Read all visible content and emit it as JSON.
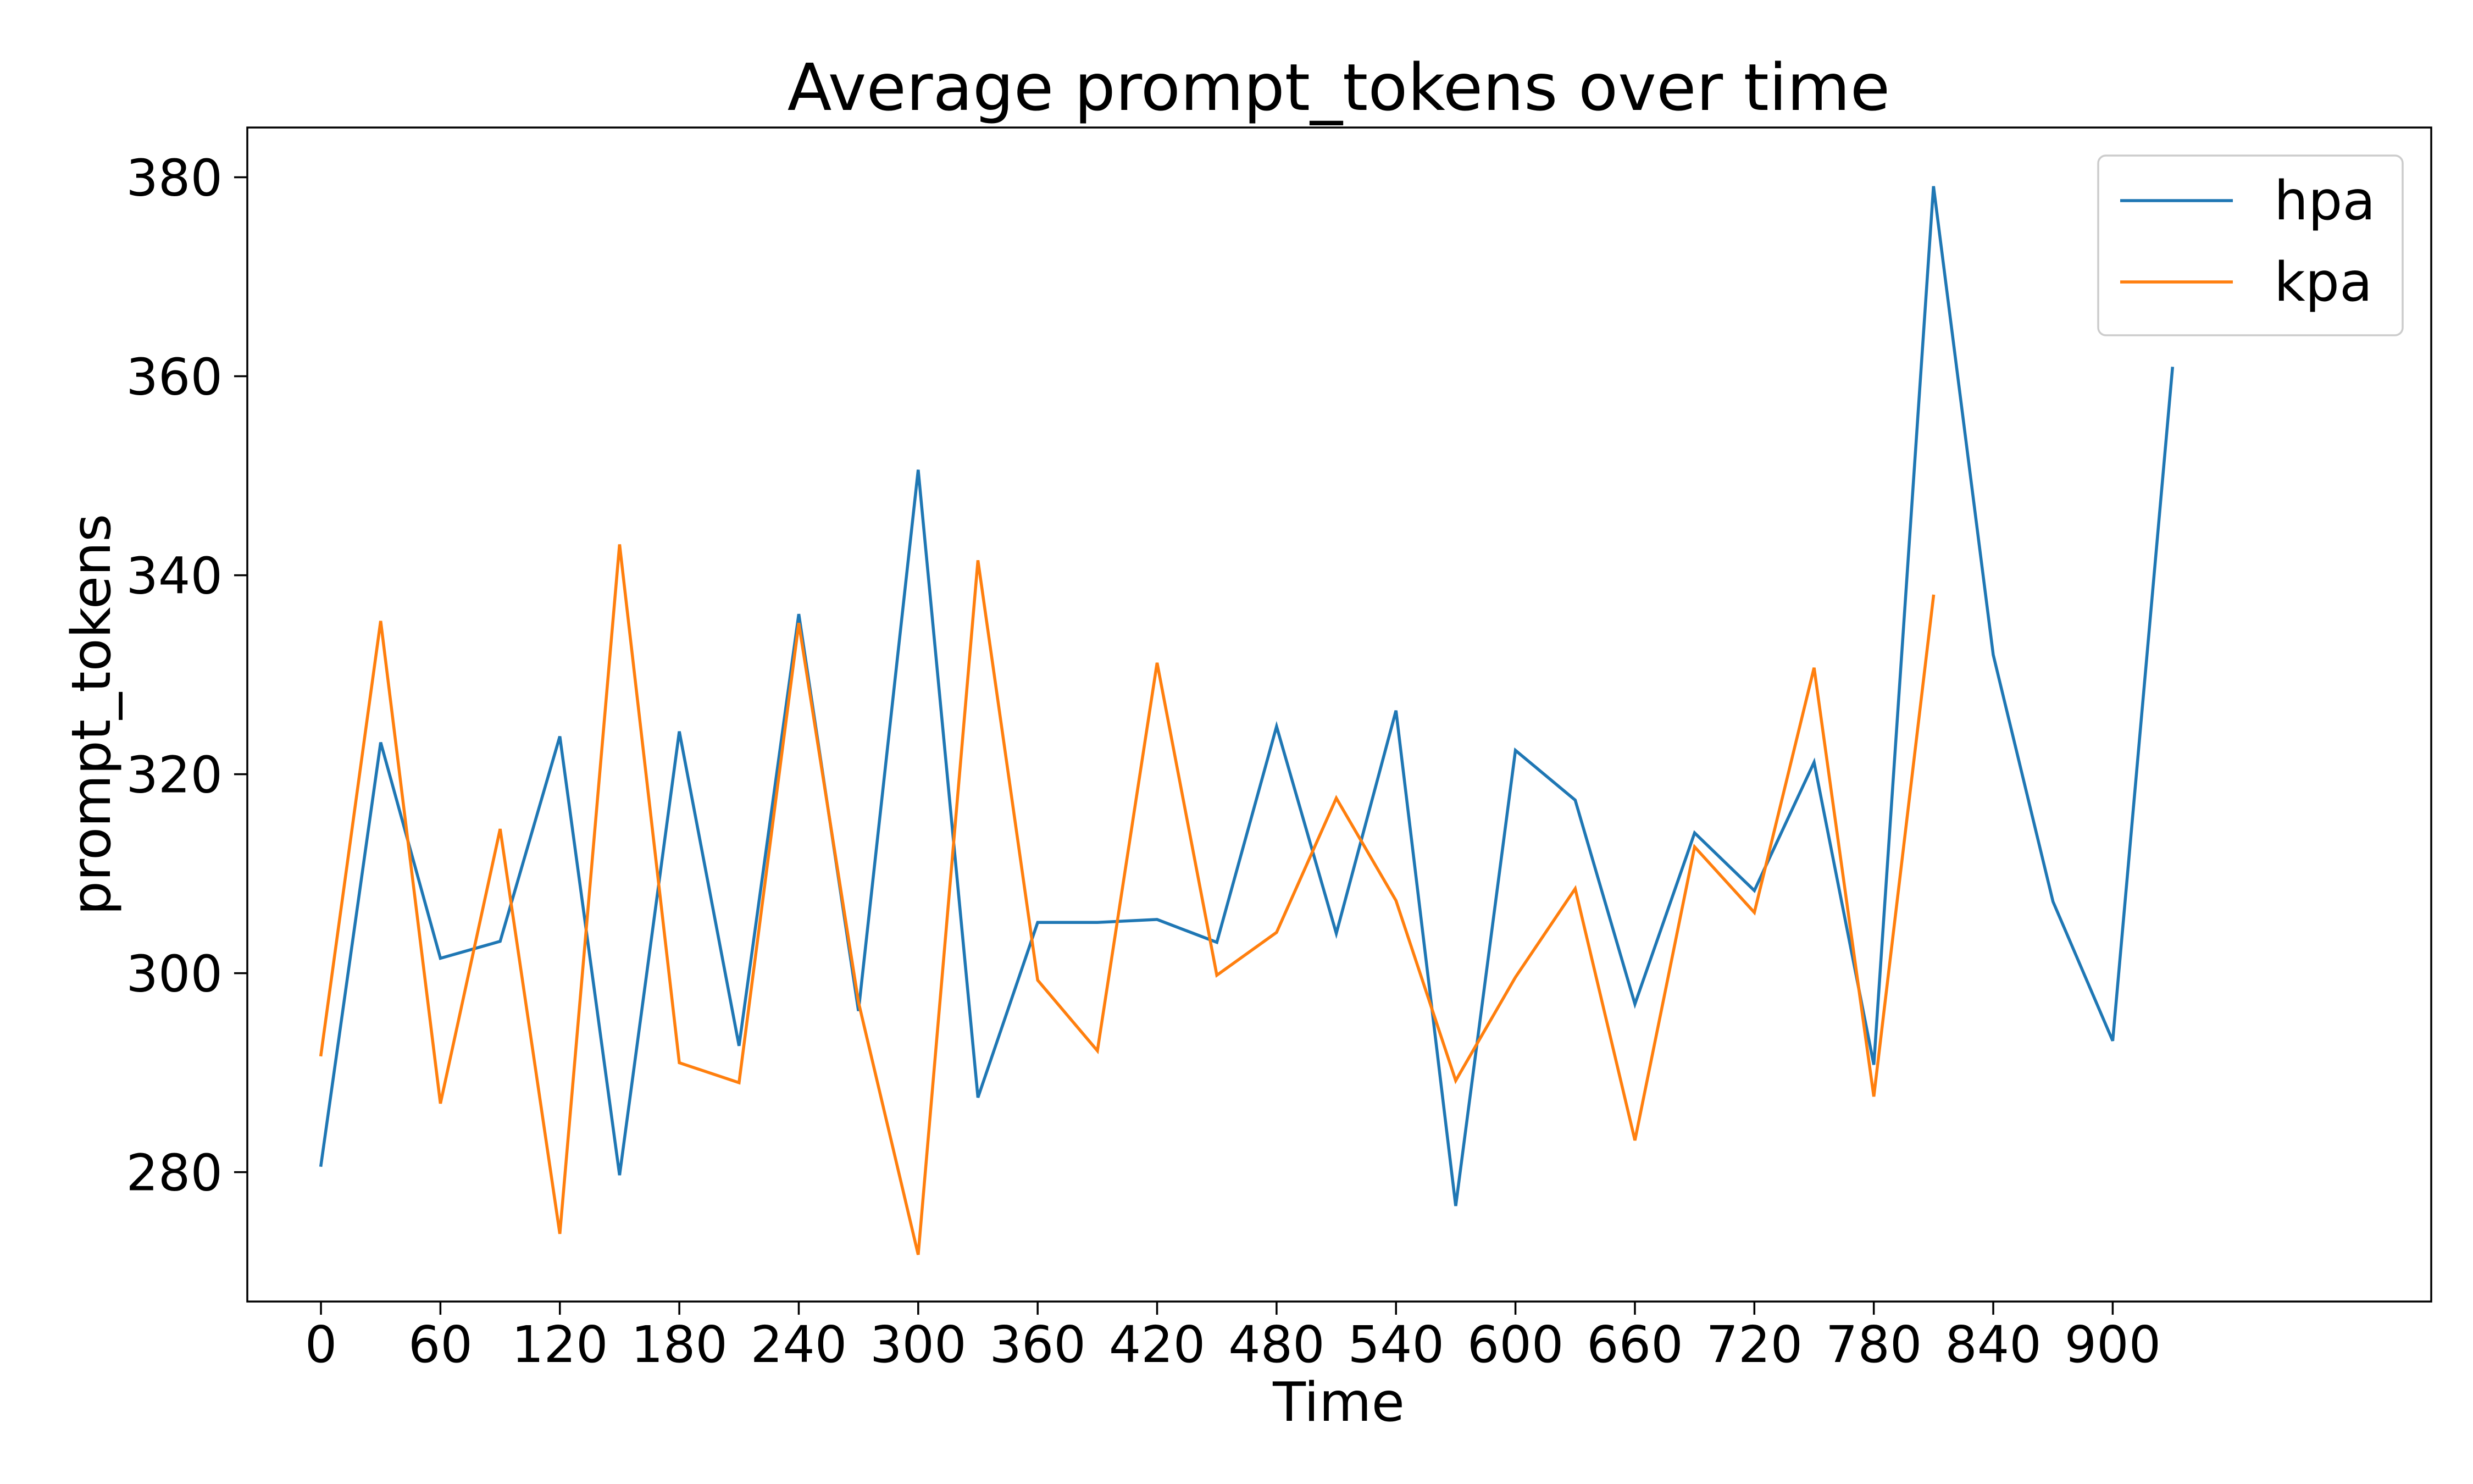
{
  "chart_data": {
    "type": "line",
    "title": "Average prompt_tokens over time",
    "xlabel": "Time",
    "ylabel": "prompt_tokens",
    "xlim": [
      -37,
      1060
    ],
    "ylim": [
      267,
      385
    ],
    "xticks": [
      0,
      60,
      120,
      180,
      240,
      300,
      360,
      420,
      480,
      540,
      600,
      660,
      720,
      780,
      840,
      900
    ],
    "yticks": [
      280,
      300,
      320,
      340,
      360,
      380
    ],
    "grid": false,
    "legend_position": "top-right",
    "series": [
      {
        "name": "hpa",
        "color": "#1f77b4",
        "x": [
          0,
          30,
          60,
          90,
          120,
          150,
          180,
          210,
          240,
          270,
          300,
          330,
          360,
          390,
          420,
          450,
          480,
          510,
          540,
          570,
          600,
          630,
          660,
          690,
          720,
          750,
          780,
          810,
          840,
          870,
          900,
          930
        ],
        "y": [
          280.7,
          323.2,
          301.5,
          303.2,
          323.8,
          279.7,
          324.3,
          292.7,
          336.1,
          296.2,
          350.6,
          287.5,
          305.1,
          305.1,
          305.4,
          303.1,
          324.8,
          304.0,
          326.4,
          276.6,
          322.4,
          317.4,
          296.9,
          314.1,
          308.3,
          321.2,
          290.8,
          379.1,
          332.0,
          307.2,
          293.2,
          360.8
        ]
      },
      {
        "name": "kpa",
        "color": "#ff7f0e",
        "x": [
          0,
          30,
          60,
          90,
          120,
          150,
          180,
          210,
          240,
          270,
          300,
          330,
          360,
          390,
          420,
          450,
          480,
          510,
          540,
          570,
          600,
          630,
          660,
          690,
          720,
          750,
          780,
          810
        ],
        "y": [
          291.8,
          335.4,
          286.9,
          314.5,
          273.8,
          343.1,
          291.0,
          289.0,
          335.2,
          297.1,
          271.7,
          341.5,
          299.3,
          292.2,
          331.2,
          299.8,
          304.1,
          317.6,
          307.3,
          289.2,
          299.6,
          308.5,
          283.2,
          312.7,
          306.1,
          330.7,
          287.6,
          337.9
        ]
      }
    ]
  }
}
